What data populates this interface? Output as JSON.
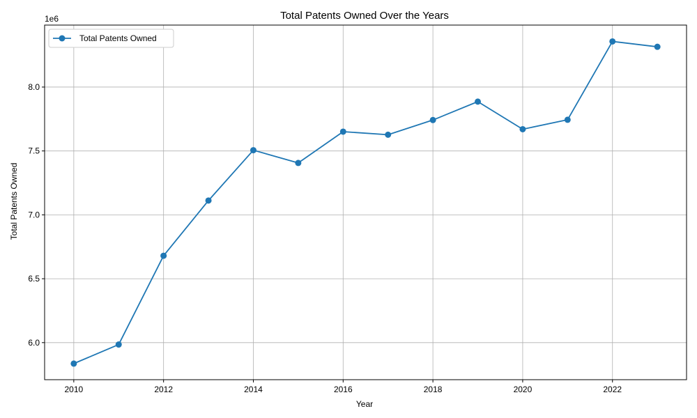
{
  "chart_data": {
    "type": "line",
    "title": "Total Patents Owned Over the Years",
    "xlabel": "Year",
    "ylabel": "Total Patents Owned",
    "y_offset_label": "1e6",
    "x": [
      2010,
      2011,
      2012,
      2013,
      2014,
      2015,
      2016,
      2017,
      2018,
      2019,
      2020,
      2021,
      2022,
      2023
    ],
    "series": [
      {
        "name": "Total Patents Owned",
        "color": "#1f77b4",
        "marker": "circle",
        "values": [
          5836000,
          5985000,
          6680000,
          7112000,
          7506000,
          7406000,
          7651000,
          7627000,
          7742000,
          7886000,
          7670000,
          7744000,
          8357000,
          8315000
        ]
      }
    ],
    "xlim": [
      2009.35,
      2023.65
    ],
    "ylim": [
      5710000,
      8485000
    ],
    "x_ticks": [
      2010,
      2012,
      2014,
      2016,
      2018,
      2020,
      2022
    ],
    "x_tick_labels": [
      "2010",
      "2012",
      "2014",
      "2016",
      "2018",
      "2020",
      "2022"
    ],
    "y_ticks": [
      6000000,
      6500000,
      7000000,
      7500000,
      8000000
    ],
    "y_tick_labels": [
      "6.0",
      "6.5",
      "7.0",
      "7.5",
      "8.0"
    ],
    "grid": true,
    "legend_position": "top-left"
  }
}
